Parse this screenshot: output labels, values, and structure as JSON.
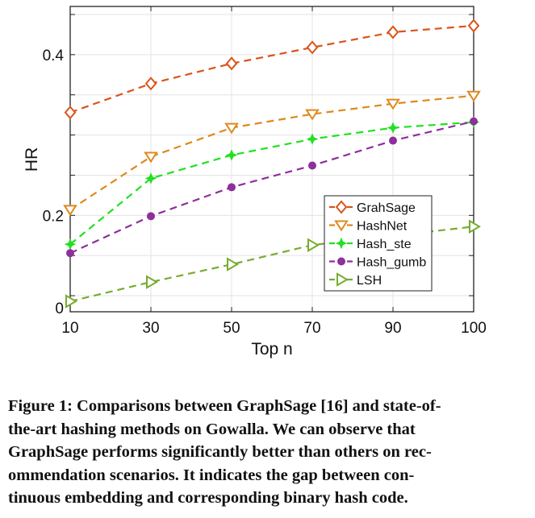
{
  "chart_data": {
    "type": "line",
    "title": "",
    "xlabel": "Top n",
    "ylabel": "HR",
    "categories": [
      "10",
      "30",
      "50",
      "70",
      "90",
      "100"
    ],
    "ylim": [
      0.08,
      0.46
    ],
    "yticks": [
      {
        "value": 0.4,
        "label": "0.4"
      },
      {
        "value": 0.2,
        "label": "0.2"
      },
      {
        "value": 0.085,
        "label": "0"
      }
    ],
    "grid": true,
    "legend_position": "center-right",
    "series": [
      {
        "name": "GrahSage",
        "color": "#d9541a",
        "marker": "diamond",
        "values": [
          0.328,
          0.364,
          0.389,
          0.409,
          0.428,
          0.436
        ]
      },
      {
        "name": "HashNet",
        "color": "#de8a1c",
        "marker": "triangle-down",
        "values": [
          0.207,
          0.273,
          0.309,
          0.326,
          0.339,
          0.349
        ]
      },
      {
        "name": "Hash_ste",
        "color": "#22e022",
        "marker": "star",
        "values": [
          0.164,
          0.246,
          0.275,
          0.295,
          0.309,
          0.316
        ]
      },
      {
        "name": "Hash_gumb",
        "color": "#8e2f9c",
        "marker": "circle",
        "values": [
          0.153,
          0.199,
          0.235,
          0.262,
          0.293,
          0.317
        ]
      },
      {
        "name": "LSH",
        "color": "#77ac30",
        "marker": "triangle-right",
        "values": [
          0.093,
          0.117,
          0.139,
          0.163,
          null,
          0.186
        ]
      }
    ]
  },
  "caption": {
    "lines": [
      "Figure 1: Comparisons between GraphSage [16] and state-of-",
      "the-art hashing methods on Gowalla. We can observe that",
      "GraphSage performs significantly better than others on rec-",
      "ommendation scenarios. It indicates the gap between con-",
      "tinuous embedding and corresponding binary hash code."
    ]
  }
}
